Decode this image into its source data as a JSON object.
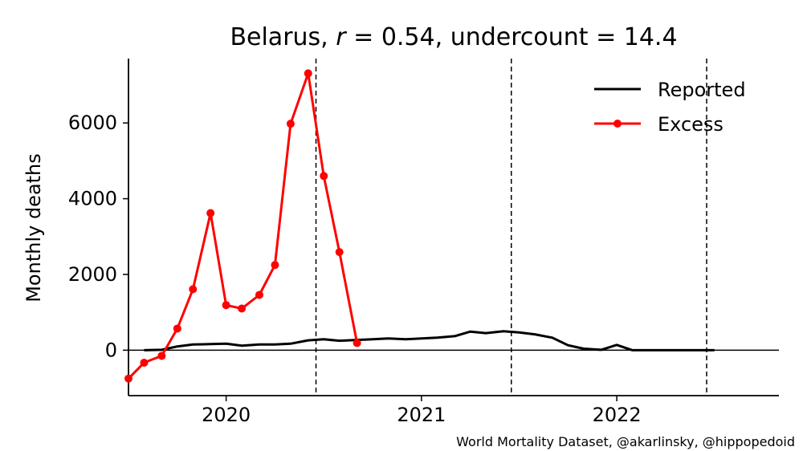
{
  "chart_data": {
    "type": "line",
    "title_country": "Belarus",
    "title_r_symbol": "r",
    "title_r_value": "= 0.54,",
    "title_undercount": "undercount = 14.4",
    "ylabel": "Monthly deaths",
    "xlim": [
      2019.5,
      2022.83
    ],
    "ylim": [
      -1200,
      7700
    ],
    "x_ticks": [
      {
        "value": 2020.0,
        "label": "2020"
      },
      {
        "value": 2021.0,
        "label": "2021"
      },
      {
        "value": 2022.0,
        "label": "2022"
      }
    ],
    "y_ticks": [
      {
        "value": 0,
        "label": "0"
      },
      {
        "value": 2000,
        "label": "2000"
      },
      {
        "value": 4000,
        "label": "4000"
      },
      {
        "value": 6000,
        "label": "6000"
      }
    ],
    "vlines": [
      2020.46,
      2021.46,
      2022.46
    ],
    "hline": 0,
    "legend": {
      "position": "top-right",
      "entries": [
        "Reported",
        "Excess"
      ]
    },
    "series": [
      {
        "name": "Reported",
        "color": "#000000",
        "marker": false,
        "x": [
          2019.58,
          2019.67,
          2019.75,
          2019.83,
          2019.92,
          2020.0,
          2020.08,
          2020.17,
          2020.25,
          2020.33,
          2020.42,
          2020.5,
          2020.58,
          2020.67,
          2020.75,
          2020.83,
          2020.92,
          2021.0,
          2021.08,
          2021.17,
          2021.25,
          2021.33,
          2021.42,
          2021.5,
          2021.58,
          2021.67,
          2021.75,
          2021.83,
          2021.92,
          2022.0,
          2022.08,
          2022.17,
          2022.25,
          2022.33,
          2022.42,
          2022.5
        ],
        "values": [
          0,
          10,
          100,
          150,
          160,
          170,
          120,
          150,
          150,
          170,
          260,
          290,
          250,
          270,
          290,
          310,
          290,
          310,
          330,
          370,
          490,
          450,
          500,
          470,
          420,
          330,
          130,
          40,
          10,
          140,
          0,
          0,
          0,
          0,
          0,
          0
        ]
      },
      {
        "name": "Excess",
        "color": "#ff0000",
        "marker": true,
        "x": [
          2019.5,
          2019.58,
          2019.67,
          2019.75,
          2019.83,
          2019.92,
          2020.0,
          2020.08,
          2020.17,
          2020.25,
          2020.33,
          2020.42,
          2020.5,
          2020.58,
          2020.67
        ],
        "values": [
          -750,
          -330,
          -150,
          570,
          1610,
          3620,
          1190,
          1100,
          1460,
          2250,
          5980,
          7310,
          4600,
          2590,
          190
        ]
      }
    ]
  },
  "credit": "World Mortality Dataset, @akarlinsky, @hippopedoid"
}
